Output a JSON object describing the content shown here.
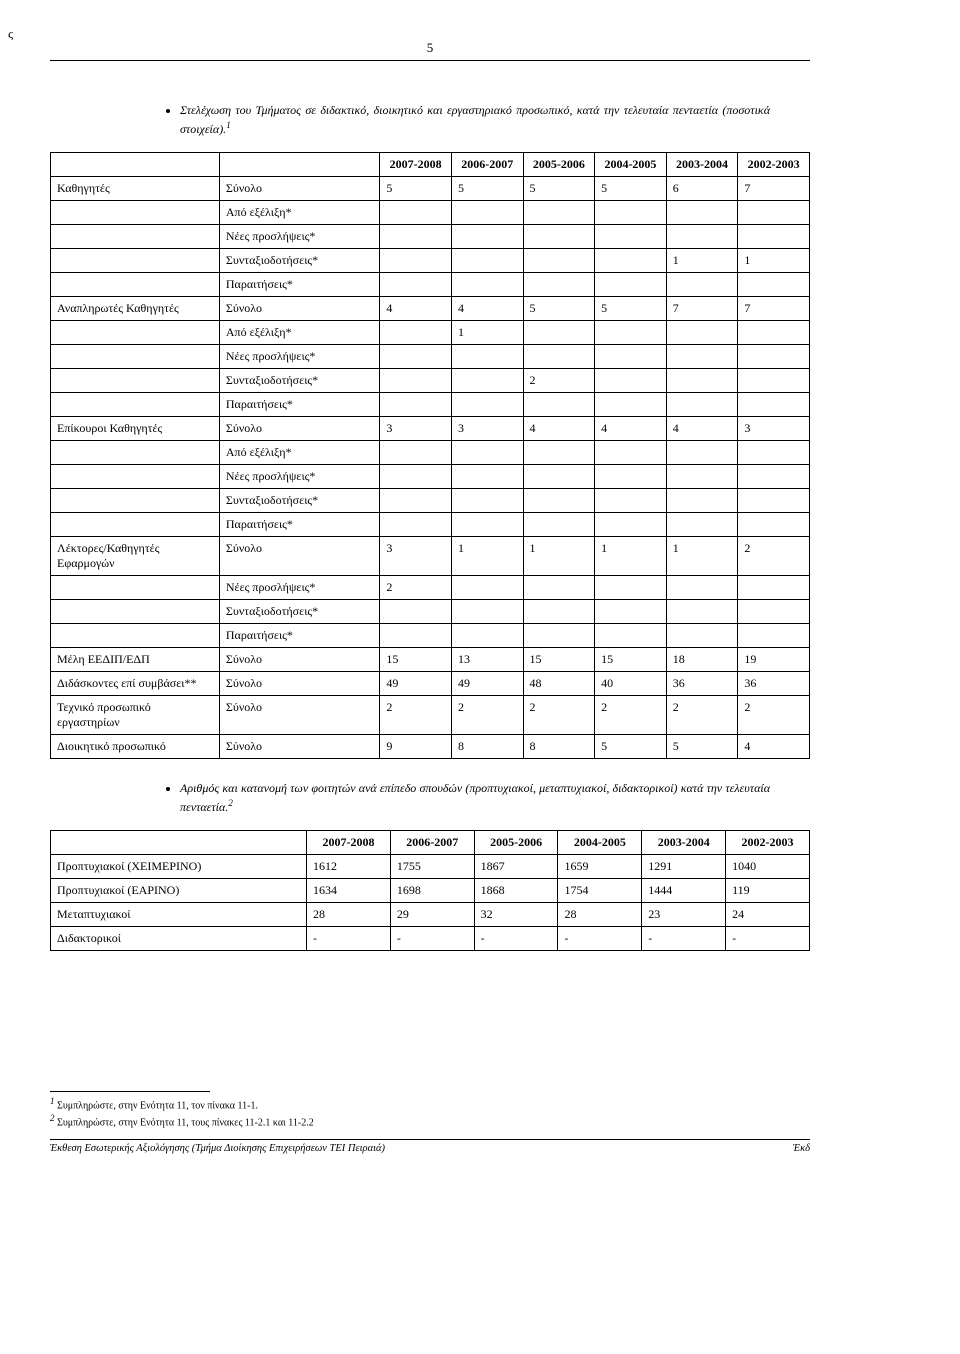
{
  "header": {
    "stray_char": "ς",
    "page_number": "5"
  },
  "intro_bullet_1": "Στελέχωση του Τμήματος σε διδακτικό, διοικητικό και εργαστηριακό προσωπικό, κατά την τελευταία πενταετία (ποσοτικά στοιχεία).",
  "sup1": "1",
  "table1": {
    "col_headers": [
      "2007-2008",
      "2006-2007",
      "2005-2006",
      "2004-2005",
      "2003-2004",
      "2002-2003"
    ],
    "rows": [
      {
        "cat": "Καθηγητές",
        "sub": "Σύνολο",
        "vals": [
          "5",
          "5",
          "5",
          "5",
          "6",
          "7"
        ]
      },
      {
        "cat": "",
        "sub": "Από εξέλιξη*",
        "vals": [
          "",
          "",
          "",
          "",
          "",
          ""
        ]
      },
      {
        "cat": "",
        "sub": "Νέες προσλήψεις*",
        "vals": [
          "",
          "",
          "",
          "",
          "",
          ""
        ]
      },
      {
        "cat": "",
        "sub": "Συνταξιοδοτήσεις*",
        "vals": [
          "",
          "",
          "",
          "",
          "1",
          "1"
        ]
      },
      {
        "cat": "",
        "sub": "Παραιτήσεις*",
        "vals": [
          "",
          "",
          "",
          "",
          "",
          ""
        ]
      },
      {
        "cat": "Αναπληρωτές Καθηγητές",
        "sub": "Σύνολο",
        "vals": [
          "4",
          "4",
          "5",
          "5",
          "7",
          "7"
        ]
      },
      {
        "cat": "",
        "sub": "Από εξέλιξη*",
        "vals": [
          "",
          "1",
          "",
          "",
          "",
          ""
        ]
      },
      {
        "cat": "",
        "sub": "Νέες προσλήψεις*",
        "vals": [
          "",
          "",
          "",
          "",
          "",
          ""
        ]
      },
      {
        "cat": "",
        "sub": "Συνταξιοδοτήσεις*",
        "vals": [
          "",
          "",
          "2",
          "",
          "",
          ""
        ]
      },
      {
        "cat": "",
        "sub": "Παραιτήσεις*",
        "vals": [
          "",
          "",
          "",
          "",
          "",
          ""
        ]
      },
      {
        "cat": "Επίκουροι Καθηγητές",
        "sub": "Σύνολο",
        "vals": [
          "3",
          "3",
          "4",
          "4",
          "4",
          "3"
        ]
      },
      {
        "cat": "",
        "sub": "Από εξέλιξη*",
        "vals": [
          "",
          "",
          "",
          "",
          "",
          ""
        ]
      },
      {
        "cat": "",
        "sub": "Νέες προσλήψεις*",
        "vals": [
          "",
          "",
          "",
          "",
          "",
          ""
        ]
      },
      {
        "cat": "",
        "sub": "Συνταξιοδοτήσεις*",
        "vals": [
          "",
          "",
          "",
          "",
          "",
          ""
        ]
      },
      {
        "cat": "",
        "sub": "Παραιτήσεις*",
        "vals": [
          "",
          "",
          "",
          "",
          "",
          ""
        ]
      },
      {
        "cat": "Λέκτορες/Καθηγητές Εφαρμογών",
        "sub": "Σύνολο",
        "vals": [
          "3",
          "1",
          "1",
          "1",
          "1",
          "2"
        ]
      },
      {
        "cat": "",
        "sub": "Νέες προσλήψεις*",
        "vals": [
          "2",
          "",
          "",
          "",
          "",
          ""
        ]
      },
      {
        "cat": "",
        "sub": "Συνταξιοδοτήσεις*",
        "vals": [
          "",
          "",
          "",
          "",
          "",
          ""
        ]
      },
      {
        "cat": "",
        "sub": "Παραιτήσεις*",
        "vals": [
          "",
          "",
          "",
          "",
          "",
          ""
        ]
      },
      {
        "cat": "Μέλη ΕΕΔΙΠ/ΕΔΠ",
        "sub": "Σύνολο",
        "vals": [
          "15",
          "13",
          "15",
          "15",
          "18",
          "19"
        ]
      },
      {
        "cat": "Διδάσκοντες επί συμβάσει**",
        "sub": "Σύνολο",
        "vals": [
          "49",
          "49",
          "48",
          "40",
          "36",
          "36"
        ]
      },
      {
        "cat": "Τεχνικό προσωπικό εργαστηρίων",
        "sub": "Σύνολο",
        "vals": [
          "2",
          "2",
          "2",
          "2",
          "2",
          "2"
        ]
      },
      {
        "cat": "Διοικητικό προσωπικό",
        "sub": "Σύνολο",
        "vals": [
          "9",
          "8",
          "8",
          "5",
          "5",
          "4"
        ]
      }
    ]
  },
  "intro_bullet_2": "Αριθμός και κατανομή των φοιτητών ανά επίπεδο σπουδών (προπτυχιακοί, μεταπτυχιακοί, διδακτορικοί) κατά την τελευταία πενταετία.",
  "sup2": "2",
  "table2": {
    "col_headers": [
      "2007-2008",
      "2006-2007",
      "2005-2006",
      "2004-2005",
      "2003-2004",
      "2002-2003"
    ],
    "rows": [
      {
        "label": "Προπτυχιακοί (ΧΕΙΜΕΡΙΝΟ)",
        "vals": [
          "1612",
          "1755",
          "1867",
          "1659",
          "1291",
          "1040"
        ]
      },
      {
        "label": "Προπτυχιακοί (ΕΑΡΙΝΟ)",
        "vals": [
          "1634",
          "1698",
          "1868",
          "1754",
          "1444",
          "119"
        ]
      },
      {
        "label": "Μεταπτυχιακοί",
        "vals": [
          "28",
          "29",
          "32",
          "28",
          "23",
          "24"
        ]
      },
      {
        "label": "Διδακτορικοί",
        "vals": [
          "-",
          "-",
          "-",
          "-",
          "-",
          "-"
        ]
      }
    ]
  },
  "footnotes": {
    "fn1_num": "1",
    "fn1_text": " Συμπληρώστε, στην Ενότητα 11, τον πίνακα 11-1.",
    "fn2_num": "2",
    "fn2_text": " Συμπληρώστε, στην Ενότητα 11, τους πίνακες 11-2.1 και 11-2.2"
  },
  "footer": {
    "left": "Έκθεση Εσωτερικής Αξιολόγησης (Τμήμα Διοίκησης Επιχειρήσεων ΤΕΙ Πειραιά)",
    "right": "Έκδ"
  }
}
